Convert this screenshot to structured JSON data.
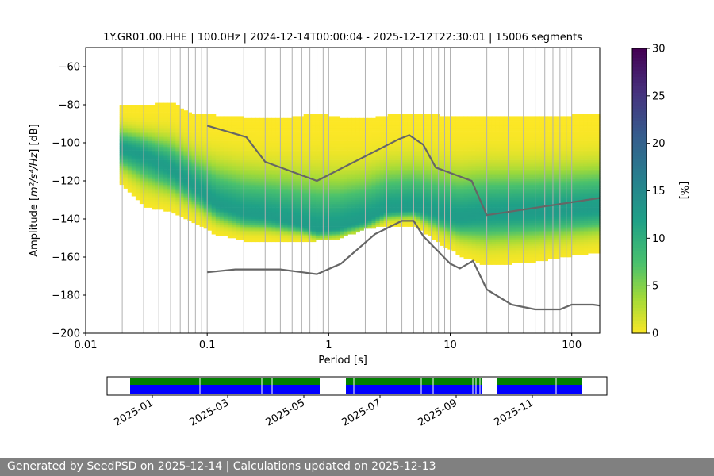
{
  "chart_data": {
    "type": "heatmap",
    "title": "1Y.GR01.00.HHE | 100.0Hz | 2024-12-14T00:00:04 - 2025-12-12T22:30:01 | 15006 segments",
    "xlabel": "Period [s]",
    "ylabel_main": "Amplitude [",
    "ylabel_units": "m²/s⁴/Hz",
    "ylabel_end": "] [dB]",
    "xscale": "log",
    "xlim": [
      0.01,
      170
    ],
    "ylim": [
      -200,
      -50
    ],
    "x_ticks": [
      {
        "v": 0.01,
        "label": "0.01"
      },
      {
        "v": 0.1,
        "label": "0.1"
      },
      {
        "v": 1,
        "label": "1"
      },
      {
        "v": 10,
        "label": "10"
      },
      {
        "v": 100,
        "label": "100"
      }
    ],
    "y_ticks": [
      -60,
      -80,
      -100,
      -120,
      -140,
      -160,
      -180,
      -200
    ],
    "colorbar": {
      "label": "[%]",
      "min": 0,
      "max": 30,
      "ticks": [
        0,
        5,
        10,
        15,
        20,
        25,
        30
      ],
      "colormap": "viridis_r"
    },
    "density_band": {
      "period": [
        0.019,
        0.03,
        0.05,
        0.08,
        0.12,
        0.2,
        0.3,
        0.5,
        0.8,
        1.2,
        2,
        3,
        5,
        8,
        12,
        20,
        50,
        100,
        170
      ],
      "mode_db": [
        -103,
        -107,
        -114,
        -124,
        -133,
        -138,
        -139,
        -142,
        -146,
        -145,
        -141,
        -136,
        -135,
        -138,
        -140,
        -138,
        -137,
        -136,
        -135
      ],
      "upper_db": [
        -80,
        -81,
        -79,
        -86,
        -86,
        -87,
        -88,
        -87,
        -85,
        -87,
        -88,
        -86,
        -85,
        -86,
        -87,
        -86,
        -87,
        -86,
        -85
      ],
      "lower_db": [
        -122,
        -134,
        -137,
        -143,
        -149,
        -152,
        -152,
        -153,
        -152,
        -151,
        -146,
        -144,
        -144,
        -153,
        -160,
        -165,
        -163,
        -160,
        -158
      ]
    },
    "series": [
      {
        "values": [
          [
            0.1,
            -91
          ],
          [
            0.21,
            -97
          ],
          [
            0.3,
            -110
          ],
          [
            0.8,
            -120
          ],
          [
            3.8,
            -98
          ],
          [
            4.6,
            -96
          ],
          [
            6,
            -101
          ],
          [
            7.6,
            -113
          ],
          [
            15,
            -120
          ],
          [
            20,
            -138
          ],
          [
            170,
            -129
          ]
        ]
      },
      {
        "values": [
          [
            0.1,
            -168
          ],
          [
            0.17,
            -166.5
          ],
          [
            0.4,
            -166.5
          ],
          [
            0.8,
            -169
          ],
          [
            1.26,
            -163.5
          ],
          [
            2.4,
            -148
          ],
          [
            4,
            -141
          ],
          [
            5,
            -141
          ],
          [
            6,
            -149
          ],
          [
            10,
            -163.5
          ],
          [
            12,
            -166
          ],
          [
            15.4,
            -162
          ],
          [
            20,
            -177
          ],
          [
            32,
            -185
          ],
          [
            50,
            -187.5
          ],
          [
            80,
            -187.5
          ],
          [
            100,
            -185
          ],
          [
            150,
            -185
          ],
          [
            170,
            -185.5
          ]
        ]
      }
    ],
    "series_color": "#666666",
    "timeline": {
      "ticks": [
        "2025-01",
        "2025-03",
        "2025-05",
        "2025-07",
        "2025-09",
        "2025-11"
      ],
      "color_upper": "#008000",
      "color_lower": "#0000ff"
    }
  },
  "footer": "Generated by SeedPSD on 2025-12-14 | Calculations updated on 2025-12-13"
}
